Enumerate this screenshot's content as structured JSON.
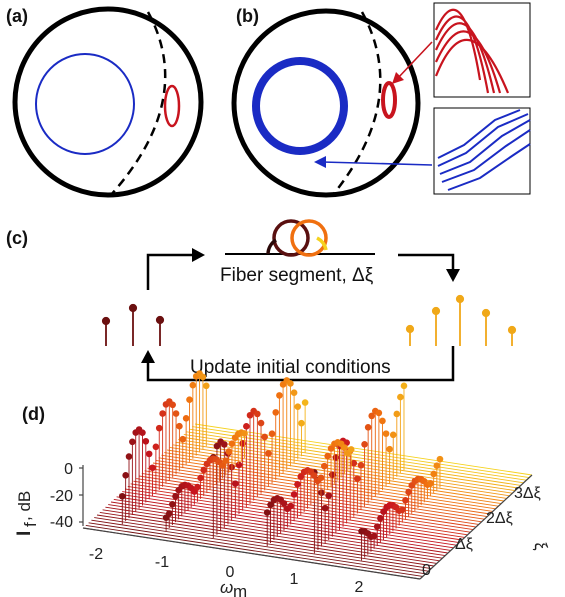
{
  "panels": {
    "a": {
      "label": "(a)"
    },
    "b": {
      "label": "(b)"
    },
    "c": {
      "label": "(c)",
      "fiber_caption": "Fiber segment, Δξ",
      "update_caption": "Update initial conditions"
    },
    "d": {
      "label": "(d)"
    }
  },
  "colors": {
    "blue": "#1a2bc4",
    "red": "#c8141e",
    "dark_red": "#6b1010",
    "orange": "#f0a020",
    "yellow": "#f5d21e"
  },
  "axes3d": {
    "x_ticks": [
      "-2",
      "-1",
      "0",
      "1",
      "2"
    ],
    "x_label": "ω",
    "x_label_sub": "m",
    "y_ticks": [
      "0",
      "-20",
      "-40"
    ],
    "y_label": "I",
    "y_label_sub": "f",
    "y_label_unit": ", dB",
    "z_ticks": [
      "0",
      "Δξ",
      "2Δξ",
      "3Δξ"
    ],
    "z_label": "ξ"
  }
}
